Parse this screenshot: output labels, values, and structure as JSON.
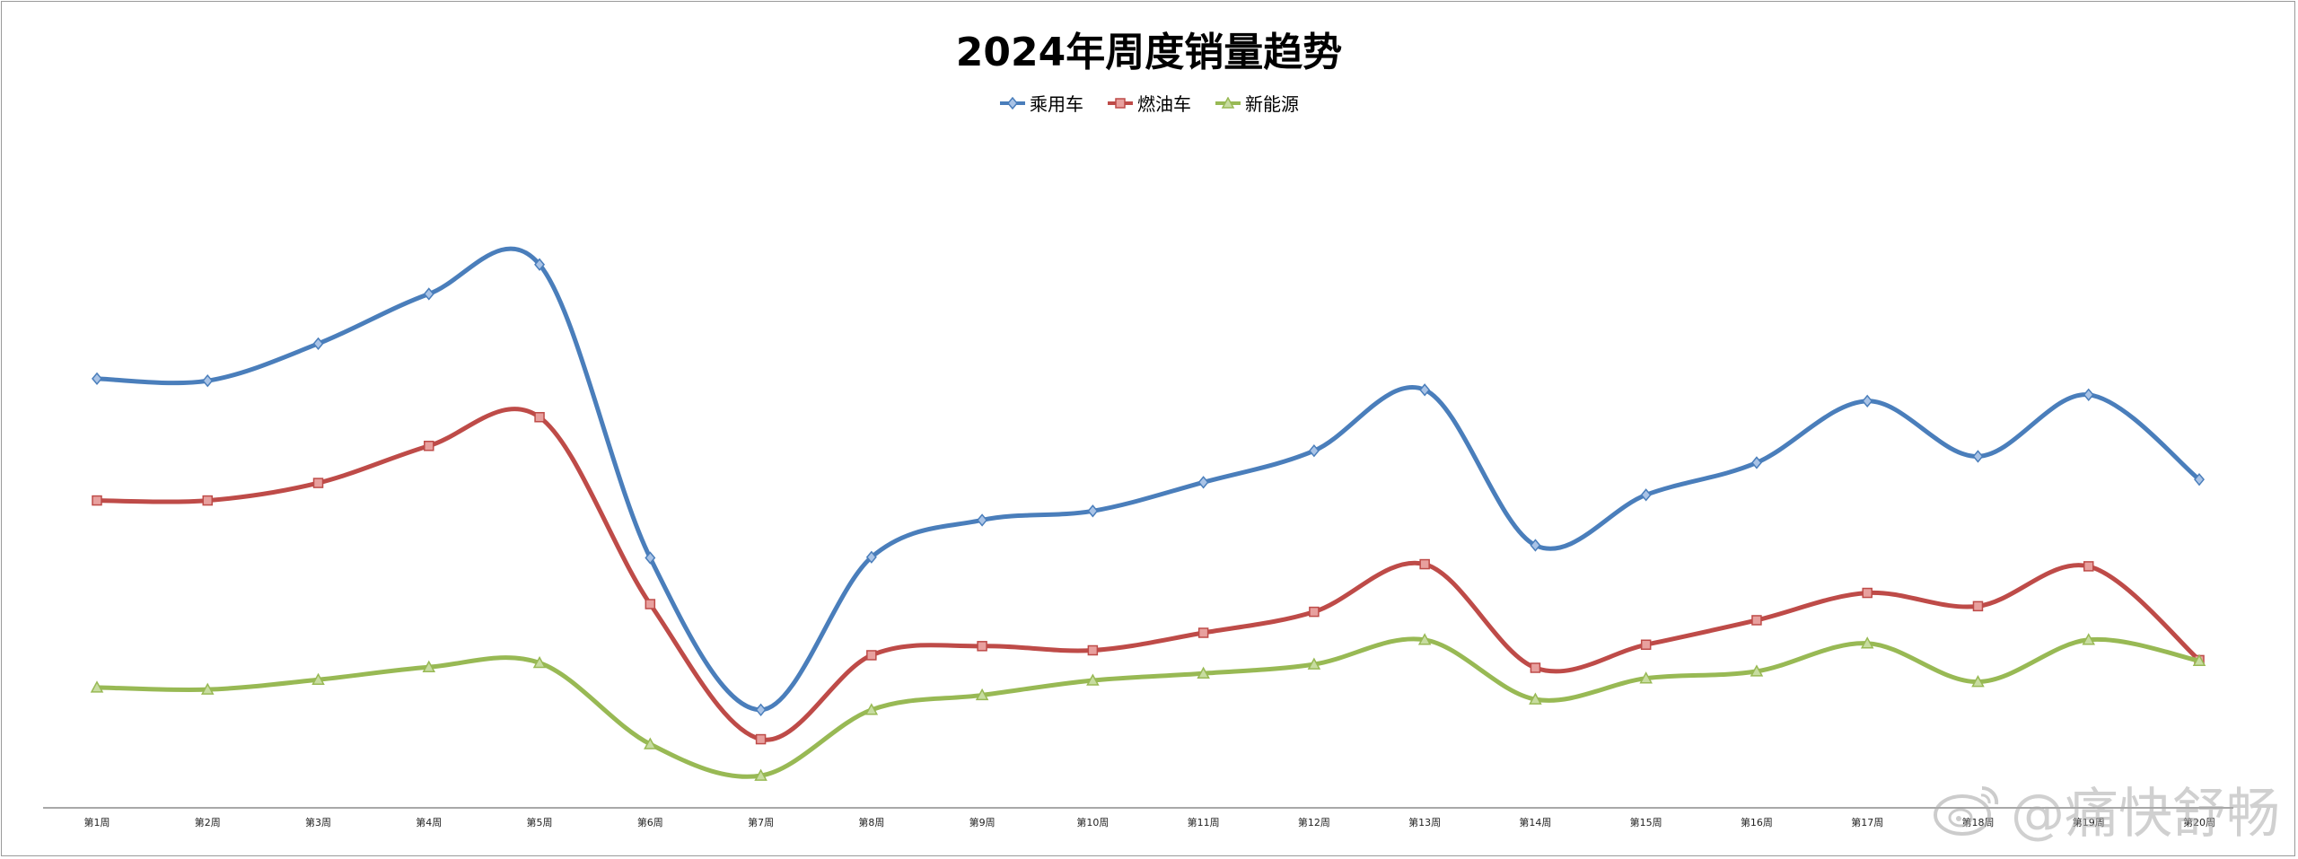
{
  "chart_data": {
    "type": "line",
    "title": "2024年周度销量趋势",
    "xlabel": "",
    "ylabel": "",
    "categories": [
      "第1周",
      "第2周",
      "第3周",
      "第4周",
      "第5周",
      "第6周",
      "第7周",
      "第8周",
      "第9周",
      "第10周",
      "第11周",
      "第12周",
      "第13周",
      "第14周",
      "第15周",
      "第16周",
      "第17周",
      "第18周",
      "第19周",
      "第20周"
    ],
    "ylim": [
      0,
      100
    ],
    "grid": false,
    "legend_position": "top-center",
    "smooth": true,
    "series": [
      {
        "name": "乘用车",
        "color": "#4a7ebb",
        "marker": "diamond",
        "values": [
          61.3,
          61.0,
          66.3,
          73.4,
          77.6,
          35.7,
          14.0,
          35.8,
          41.1,
          42.4,
          46.5,
          51.0,
          59.7,
          37.5,
          44.7,
          49.3,
          58.1,
          50.2,
          59.0,
          46.9
        ]
      },
      {
        "name": "燃油车",
        "color": "#be4b48",
        "marker": "square",
        "values": [
          43.9,
          43.9,
          46.4,
          51.7,
          55.8,
          29.1,
          9.8,
          21.8,
          23.1,
          22.5,
          25.0,
          28.0,
          34.8,
          20.0,
          23.3,
          26.8,
          30.7,
          28.8,
          34.5,
          21.1
        ]
      },
      {
        "name": "新能源",
        "color": "#98b954",
        "marker": "triangle",
        "values": [
          17.2,
          16.9,
          18.3,
          20.1,
          20.7,
          9.1,
          4.6,
          14.0,
          16.1,
          18.2,
          19.2,
          20.5,
          24.0,
          15.5,
          18.5,
          19.5,
          23.5,
          18.0,
          24.0,
          21.0
        ]
      }
    ]
  },
  "watermark": {
    "text": "@痛快舒畅"
  }
}
